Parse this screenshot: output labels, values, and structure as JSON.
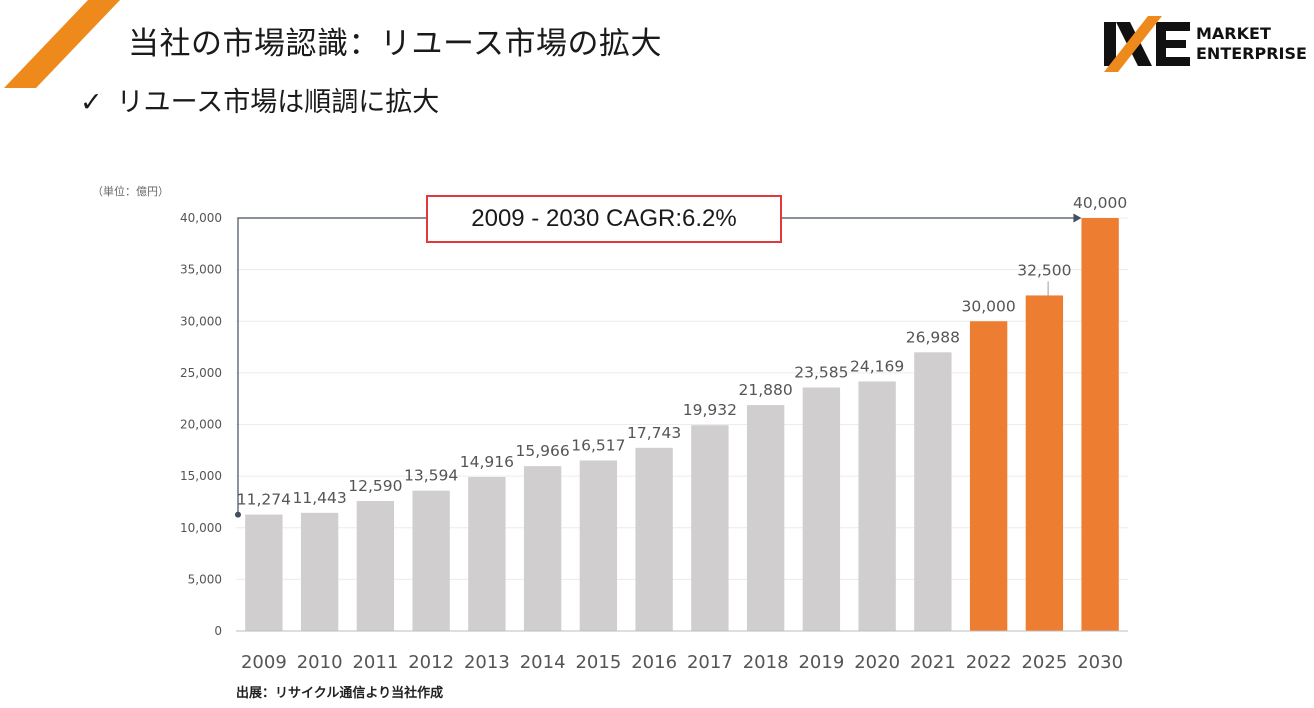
{
  "header": {
    "title": "当社の市場認識：リユース市場の拡大",
    "subtitle": "リユース市場は順調に拡大",
    "check_glyph": "✓",
    "logo_icon": "me-logo-icon",
    "logo_line1": "MARKET",
    "logo_line2": "ENTERPRISE"
  },
  "colors": {
    "accent": "#ee8a1c",
    "bar_gray": "#d0cecf",
    "bar_orange": "#ed7d31",
    "cagr_border": "#e03a3a",
    "axis": "#444e5e"
  },
  "annotation": {
    "cagr": "2009 - 2030  CAGR:6.2%"
  },
  "footer": {
    "source": "出展：リサイクル通信より当社作成"
  },
  "chart_data": {
    "type": "bar",
    "unit_label": "（単位：億円）",
    "categories": [
      "2009",
      "2010",
      "2011",
      "2012",
      "2013",
      "2014",
      "2015",
      "2016",
      "2017",
      "2018",
      "2019",
      "2020",
      "2021",
      "2022",
      "2025",
      "2030"
    ],
    "values": [
      11274,
      11443,
      12590,
      13594,
      14916,
      15966,
      16517,
      17743,
      19932,
      21880,
      23585,
      24169,
      26988,
      30000,
      32500,
      40000
    ],
    "data_labels": [
      "11,274",
      "11,443",
      "12,590",
      "13,594",
      "14,916",
      "15,966",
      "16,517",
      "17,743",
      "19,932",
      "21,880",
      "23,585",
      "24,169",
      "26,988",
      "30,000",
      "32,500",
      "40,000"
    ],
    "highlighted_categories": [
      "2022",
      "2025",
      "2030"
    ],
    "ylim": [
      0,
      40000
    ],
    "yticks": [
      0,
      5000,
      10000,
      15000,
      20000,
      25000,
      30000,
      35000,
      40000
    ],
    "ytick_labels": [
      "0",
      "5,000",
      "10,000",
      "15,000",
      "20,000",
      "25,000",
      "30,000",
      "35,000",
      "40,000"
    ],
    "grid": true,
    "legend": "none"
  }
}
